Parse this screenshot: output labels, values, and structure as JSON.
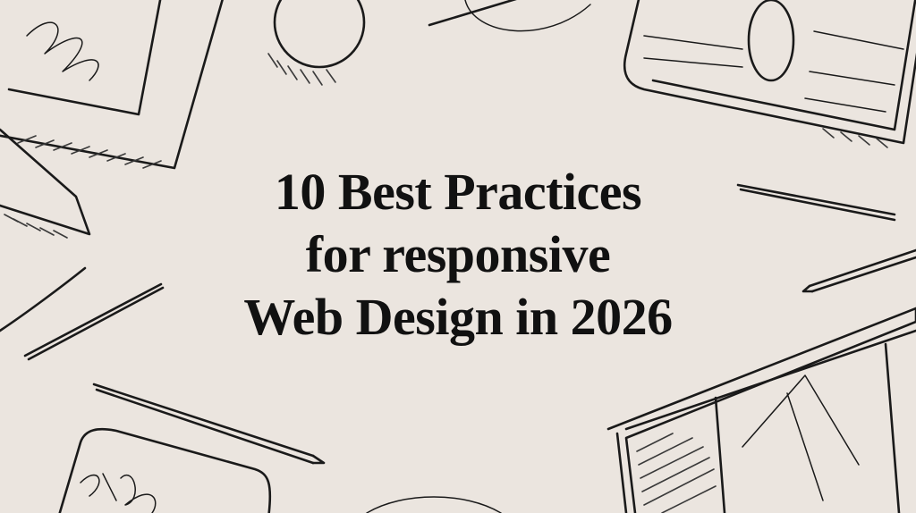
{
  "background_color": "#ebe5df",
  "ink_color": "#111111",
  "title": {
    "line1": "10 Best Practices",
    "line2": "for responsive",
    "line3": "Web Design in 2026"
  },
  "decorations": [
    "tablet-sketch-icon",
    "circle-sketch-icon",
    "card-sketch-icon",
    "pencil-sketch-icon",
    "triangle-sketch-icon",
    "wireframe-sketch-icon",
    "signature-card-sketch-icon"
  ]
}
